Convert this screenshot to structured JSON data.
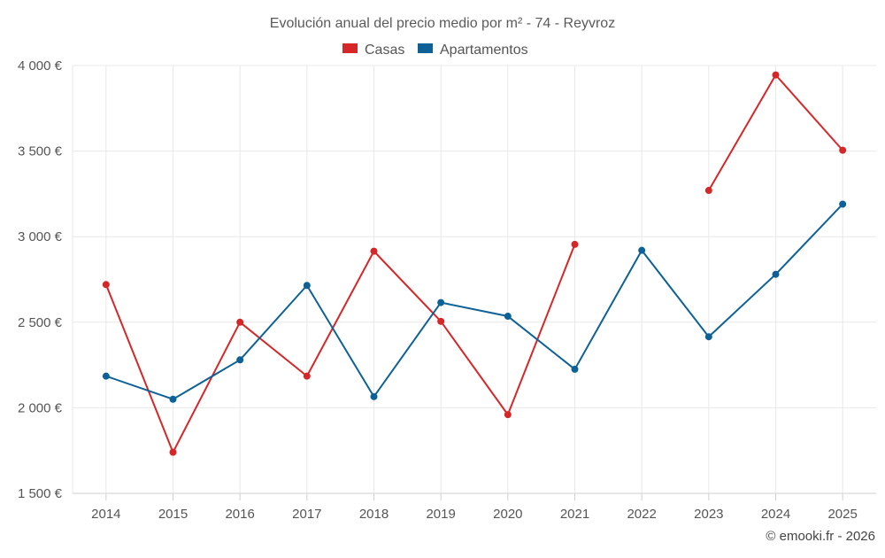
{
  "chart_data": {
    "type": "line",
    "title": "Evolución anual del precio medio por m² - 74 - Reyvroz",
    "categories": [
      "2014",
      "2015",
      "2016",
      "2017",
      "2018",
      "2019",
      "2020",
      "2021",
      "2022",
      "2023",
      "2024",
      "2025"
    ],
    "series": [
      {
        "name": "Casas",
        "color": "#d62728",
        "values": [
          2720,
          1740,
          2500,
          2185,
          2915,
          2505,
          1960,
          2955,
          null,
          3270,
          3945,
          3505
        ]
      },
      {
        "name": "Apartamentos",
        "color": "#0e6196",
        "values": [
          2185,
          2050,
          2280,
          2715,
          2065,
          2615,
          2535,
          2225,
          2920,
          2415,
          2780,
          3190
        ]
      }
    ],
    "y_ticks": [
      "1 500 €",
      "2 000 €",
      "2 500 €",
      "3 000 €",
      "3 500 €",
      "4 000 €"
    ],
    "y_tick_values": [
      1500,
      2000,
      2500,
      3000,
      3500,
      4000
    ],
    "ylim": [
      1500,
      4000
    ],
    "xlabel": "",
    "ylabel": "",
    "legend_position": "top-center",
    "grid": true
  },
  "credit": "© emooki.fr - 2026"
}
